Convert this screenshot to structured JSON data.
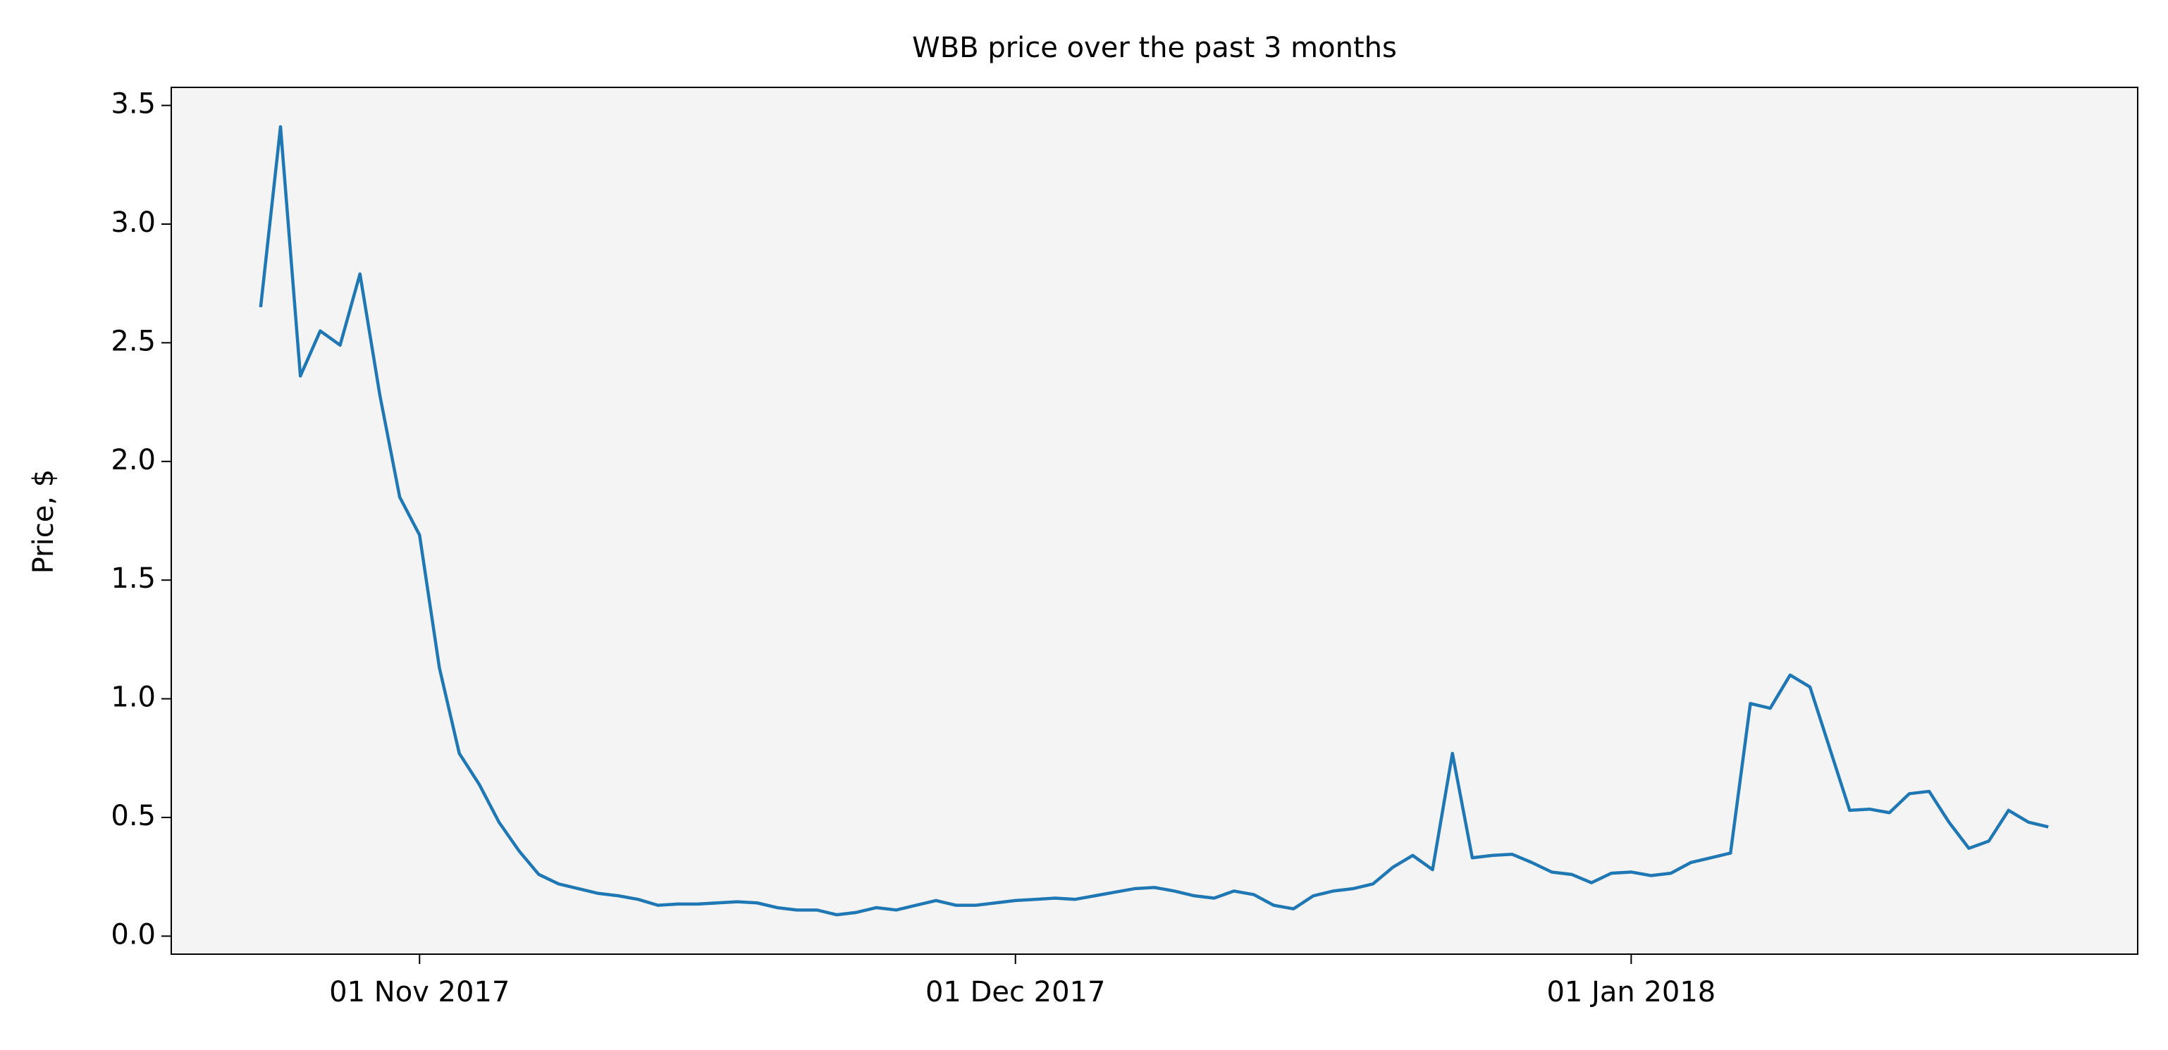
{
  "chart_data": {
    "type": "line",
    "title": "WBB price over the past 3 months",
    "ylabel": "Price, $",
    "x": [
      "2017-10-24",
      "2017-10-25",
      "2017-10-26",
      "2017-10-27",
      "2017-10-28",
      "2017-10-29",
      "2017-10-30",
      "2017-10-31",
      "2017-11-01",
      "2017-11-02",
      "2017-11-03",
      "2017-11-04",
      "2017-11-05",
      "2017-11-06",
      "2017-11-07",
      "2017-11-08",
      "2017-11-09",
      "2017-11-10",
      "2017-11-11",
      "2017-11-12",
      "2017-11-13",
      "2017-11-14",
      "2017-11-15",
      "2017-11-16",
      "2017-11-17",
      "2017-11-18",
      "2017-11-19",
      "2017-11-20",
      "2017-11-21",
      "2017-11-22",
      "2017-11-23",
      "2017-11-24",
      "2017-11-25",
      "2017-11-26",
      "2017-11-27",
      "2017-11-28",
      "2017-11-29",
      "2017-11-30",
      "2017-12-01",
      "2017-12-02",
      "2017-12-03",
      "2017-12-04",
      "2017-12-05",
      "2017-12-06",
      "2017-12-07",
      "2017-12-08",
      "2017-12-09",
      "2017-12-10",
      "2017-12-11",
      "2017-12-12",
      "2017-12-13",
      "2017-12-14",
      "2017-12-15",
      "2017-12-16",
      "2017-12-17",
      "2017-12-18",
      "2017-12-19",
      "2017-12-20",
      "2017-12-21",
      "2017-12-22",
      "2017-12-23",
      "2017-12-24",
      "2017-12-25",
      "2017-12-26",
      "2017-12-27",
      "2017-12-28",
      "2017-12-29",
      "2017-12-30",
      "2017-12-31",
      "2018-01-01",
      "2018-01-02",
      "2018-01-03",
      "2018-01-04",
      "2018-01-05",
      "2018-01-06",
      "2018-01-07",
      "2018-01-08",
      "2018-01-09",
      "2018-01-10",
      "2018-01-11",
      "2018-01-12",
      "2018-01-13",
      "2018-01-14",
      "2018-01-15",
      "2018-01-16",
      "2018-01-17",
      "2018-01-18",
      "2018-01-19",
      "2018-01-20",
      "2018-01-21",
      "2018-01-22"
    ],
    "series": [
      {
        "color": "#1f77b4",
        "values": [
          2.65,
          3.41,
          2.36,
          2.55,
          2.49,
          2.79,
          2.28,
          1.85,
          1.69,
          1.13,
          0.77,
          0.64,
          0.48,
          0.36,
          0.26,
          0.22,
          0.2,
          0.18,
          0.17,
          0.155,
          0.13,
          0.135,
          0.135,
          0.14,
          0.145,
          0.14,
          0.12,
          0.11,
          0.11,
          0.09,
          0.1,
          0.12,
          0.11,
          0.13,
          0.15,
          0.13,
          0.13,
          0.14,
          0.15,
          0.155,
          0.16,
          0.155,
          0.17,
          0.185,
          0.2,
          0.205,
          0.19,
          0.17,
          0.16,
          0.19,
          0.175,
          0.13,
          0.115,
          0.17,
          0.19,
          0.2,
          0.22,
          0.29,
          0.34,
          0.28,
          0.77,
          0.33,
          0.34,
          0.345,
          0.31,
          0.27,
          0.26,
          0.225,
          0.265,
          0.27,
          0.255,
          0.265,
          0.31,
          0.33,
          0.35,
          0.98,
          0.96,
          1.1,
          1.05,
          0.79,
          0.53,
          0.535,
          0.52,
          0.6,
          0.61,
          0.48,
          0.37,
          0.4,
          0.53,
          0.48,
          0.46
        ]
      }
    ],
    "xlim": [
      "2017-10-19T12:00Z",
      "2018-01-26T12:00Z"
    ],
    "xticks": [
      {
        "value": "2017-11-01",
        "label": "01 Nov 2017"
      },
      {
        "value": "2017-12-01",
        "label": "01 Dec 2017"
      },
      {
        "value": "2018-01-01",
        "label": "01 Jan 2018"
      }
    ],
    "ylim": [
      -0.076,
      3.576
    ],
    "yticks": [
      {
        "value": 0,
        "label": "0.0"
      },
      0.5,
      {
        "value": 1,
        "label": "1.0"
      },
      1.5,
      {
        "value": 2,
        "label": "2.0"
      },
      2.5,
      {
        "value": 3,
        "label": "3.0"
      },
      3.5
    ],
    "background": "#f4f4f4",
    "grid": false
  }
}
